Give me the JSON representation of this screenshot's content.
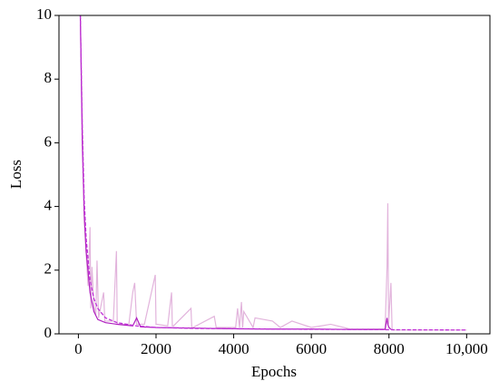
{
  "chart_data": {
    "type": "line",
    "x_label": "Epochs",
    "y_label": "Loss",
    "xlim": [
      -500,
      10600
    ],
    "ylim": [
      0,
      10
    ],
    "xticks": [
      0,
      2000,
      4000,
      6000,
      8000,
      {
        "value": 10000,
        "label": "10,000"
      }
    ],
    "yticks": [
      0,
      2,
      4,
      6,
      8,
      10
    ],
    "series": [
      {
        "color": "#e2b4dc",
        "dashed": false,
        "x": [
          50,
          150,
          250,
          300,
          320,
          350,
          400,
          450,
          480,
          520,
          650,
          680,
          720,
          900,
          980,
          1000,
          1020,
          1300,
          1400,
          1450,
          1500,
          1700,
          1980,
          2000,
          2020,
          2300,
          2400,
          2420,
          2450,
          2900,
          2920,
          2950,
          3500,
          3550,
          3600,
          4050,
          4100,
          4150,
          4200,
          4230,
          4260,
          4500,
          4550,
          5000,
          5200,
          5500,
          6000,
          6500,
          7000,
          7500,
          7900,
          7950,
          7970,
          7990,
          8050,
          8080,
          8100,
          8500,
          9000,
          10000
        ],
        "values": [
          10,
          3.5,
          1.5,
          3.35,
          0.8,
          2.1,
          0.9,
          0.6,
          2.3,
          0.5,
          1.3,
          0.4,
          0.4,
          0.4,
          2.6,
          0.35,
          0.3,
          0.3,
          1.3,
          1.6,
          0.3,
          0.3,
          1.85,
          0.3,
          0.3,
          0.25,
          1.3,
          0.25,
          0.25,
          0.8,
          0.2,
          0.2,
          0.55,
          0.2,
          0.2,
          0.2,
          0.8,
          0.2,
          1.0,
          0.2,
          0.7,
          0.2,
          0.5,
          0.4,
          0.2,
          0.4,
          0.2,
          0.3,
          0.15,
          0.15,
          0.15,
          2.1,
          4.1,
          0.3,
          1.6,
          0.15,
          0.12,
          0.12,
          0.12,
          0.12
        ]
      },
      {
        "color": "#b020c0",
        "dashed": false,
        "x": [
          50,
          100,
          150,
          200,
          300,
          400,
          500,
          700,
          1000,
          1400,
          1500,
          1600,
          2000,
          3000,
          4000,
          5000,
          6000,
          7000,
          7900,
          7950,
          7970,
          8000,
          8050
        ],
        "values": [
          10,
          6.0,
          3.8,
          2.6,
          1.3,
          0.7,
          0.45,
          0.35,
          0.3,
          0.25,
          0.5,
          0.22,
          0.2,
          0.18,
          0.16,
          0.15,
          0.15,
          0.14,
          0.14,
          0.5,
          0.3,
          0.2,
          0.14
        ]
      },
      {
        "color": "#c030d8",
        "dashed": true,
        "x": [
          50,
          100,
          150,
          200,
          300,
          400,
          500,
          700,
          1000,
          1500,
          2000,
          3000,
          5000,
          8000,
          10000
        ],
        "values": [
          10,
          6.5,
          4.2,
          3.0,
          1.7,
          1.1,
          0.8,
          0.5,
          0.35,
          0.25,
          0.2,
          0.17,
          0.15,
          0.13,
          0.12
        ]
      }
    ]
  }
}
